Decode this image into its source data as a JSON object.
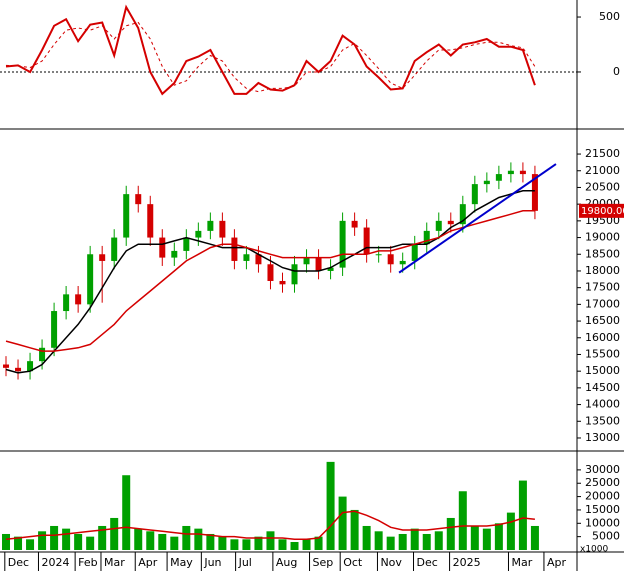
{
  "chart_data": [
    {
      "type": "line",
      "ylim": [
        -510,
        655
      ],
      "yticks": [
        0,
        500
      ],
      "zero_line": true,
      "series": [
        {
          "color": "#d40000",
          "width": 2,
          "values": [
            50,
            60,
            0,
            200,
            420,
            480,
            280,
            430,
            450,
            150,
            590,
            400,
            0,
            -200,
            -100,
            100,
            140,
            200,
            0,
            -200,
            -200,
            -100,
            -160,
            -170,
            -120,
            100,
            0,
            100,
            330,
            250,
            50,
            -50,
            -160,
            -150,
            100,
            180,
            250,
            150,
            250,
            270,
            300,
            230,
            230,
            200,
            -120
          ]
        },
        {
          "color": "#d40000",
          "width": 1,
          "dashed": true,
          "values": [
            60,
            55,
            40,
            100,
            250,
            380,
            400,
            380,
            420,
            300,
            420,
            450,
            300,
            50,
            -120,
            -80,
            50,
            150,
            100,
            -50,
            -150,
            -180,
            -150,
            -150,
            -130,
            0,
            0,
            50,
            200,
            260,
            150,
            30,
            -100,
            -150,
            -30,
            100,
            200,
            200,
            220,
            250,
            270,
            270,
            240,
            220,
            50
          ]
        }
      ]
    },
    {
      "type": "candlestick",
      "ylim": [
        12640,
        22220
      ],
      "yticks": [
        13000,
        13500,
        14000,
        14500,
        15000,
        15500,
        16000,
        16500,
        17000,
        17500,
        18000,
        18500,
        19000,
        19500,
        20000,
        20500,
        21000,
        21500
      ],
      "up_color": "#00a000",
      "down_color": "#d40000",
      "open": [
        15200,
        15100,
        15000,
        15300,
        15700,
        16800,
        17300,
        17000,
        18500,
        18300,
        19000,
        20300,
        20000,
        19000,
        18400,
        18600,
        19000,
        19200,
        19500,
        19000,
        18300,
        18500,
        18200,
        17700,
        17600,
        18200,
        18400,
        18000,
        18100,
        19500,
        19300,
        18500,
        18500,
        18200,
        18300,
        18800,
        19200,
        19500,
        19400,
        20000,
        20600,
        20700,
        20900,
        21000,
        20900
      ],
      "high": [
        15450,
        15350,
        15550,
        15950,
        17050,
        17550,
        17550,
        18750,
        18750,
        19250,
        20550,
        20550,
        20250,
        19250,
        18850,
        19250,
        19450,
        19750,
        19750,
        19250,
        18750,
        18750,
        18450,
        17950,
        18450,
        18650,
        18650,
        18350,
        19750,
        19750,
        19550,
        18750,
        18750,
        18550,
        19050,
        19450,
        19750,
        19750,
        20250,
        20850,
        20950,
        21150,
        21250,
        21250,
        21150
      ],
      "low": [
        14850,
        14750,
        14750,
        15050,
        15450,
        16550,
        16750,
        16750,
        17050,
        18050,
        18750,
        19750,
        18750,
        18150,
        18150,
        18350,
        18750,
        18950,
        18750,
        18050,
        18050,
        17950,
        17450,
        17350,
        17350,
        17950,
        17750,
        17750,
        17850,
        19050,
        18250,
        18250,
        17950,
        17950,
        18050,
        18550,
        18950,
        19150,
        19150,
        19750,
        20350,
        20450,
        20650,
        20650,
        19550
      ],
      "close": [
        15100,
        15000,
        15300,
        15700,
        16800,
        17300,
        17000,
        18500,
        18300,
        19000,
        20300,
        20000,
        19000,
        18400,
        18600,
        19000,
        19200,
        19500,
        19000,
        18300,
        18500,
        18200,
        17700,
        17600,
        18200,
        18400,
        18000,
        18100,
        19500,
        19300,
        18500,
        18500,
        18200,
        18300,
        18800,
        19200,
        19500,
        19400,
        20000,
        20600,
        20700,
        20900,
        21000,
        20900,
        19800
      ],
      "series": [
        {
          "color": "#000000",
          "values": [
            15050,
            14950,
            15000,
            15200,
            15600,
            16000,
            16400,
            16900,
            17500,
            18100,
            18600,
            18800,
            18800,
            18800,
            18900,
            19000,
            18900,
            18800,
            18700,
            18700,
            18700,
            18500,
            18300,
            18100,
            18000,
            18000,
            18000,
            18100,
            18300,
            18500,
            18700,
            18700,
            18700,
            18800,
            18800,
            18800,
            19000,
            19300,
            19500,
            19800,
            20000,
            20200,
            20300,
            20400,
            20400
          ]
        },
        {
          "color": "#d40000",
          "values": [
            15900,
            15800,
            15700,
            15600,
            15600,
            15650,
            15700,
            15800,
            16100,
            16400,
            16800,
            17100,
            17400,
            17700,
            18000,
            18300,
            18500,
            18700,
            18800,
            18800,
            18700,
            18600,
            18500,
            18400,
            18400,
            18400,
            18400,
            18400,
            18500,
            18500,
            18500,
            18600,
            18600,
            18700,
            18800,
            18900,
            19000,
            19200,
            19300,
            19400,
            19500,
            19600,
            19700,
            19800,
            19800
          ]
        }
      ],
      "trendline": {
        "color": "#0000cc",
        "x": [
          33.2,
          46.25
        ],
        "y": [
          17950,
          21200
        ]
      },
      "last_price": {
        "value": 19800,
        "label": "19800.00",
        "color": "#d40000"
      }
    },
    {
      "type": "bar",
      "ylim": [
        0,
        36700
      ],
      "yticks": [
        5000,
        10000,
        15000,
        20000,
        25000,
        30000
      ],
      "unit_label": "x1000",
      "color": "#00a000",
      "values": [
        6000,
        5000,
        4000,
        7000,
        9000,
        8000,
        6000,
        5000,
        9000,
        12000,
        28000,
        8000,
        7000,
        6000,
        5000,
        9000,
        8000,
        6000,
        5000,
        4000,
        4000,
        5000,
        7000,
        4000,
        3000,
        4000,
        5000,
        33000,
        20000,
        15000,
        9000,
        7000,
        5000,
        6000,
        8000,
        6000,
        7000,
        12000,
        22000,
        9000,
        8000,
        10000,
        14000,
        26000,
        9000
      ],
      "series": [
        {
          "color": "#d40000",
          "values": [
            4000,
            4500,
            5000,
            5500,
            5500,
            6000,
            6500,
            7000,
            7500,
            8000,
            8500,
            8000,
            7500,
            7000,
            6500,
            6000,
            6000,
            5500,
            5000,
            5000,
            4500,
            4500,
            4500,
            4500,
            4000,
            4000,
            4500,
            9000,
            14000,
            14500,
            13000,
            11000,
            8500,
            7500,
            7500,
            7500,
            8000,
            8500,
            9000,
            9000,
            9000,
            9500,
            10500,
            12000,
            11500
          ]
        }
      ],
      "xlim": [
        0,
        48
      ],
      "xticks": [
        {
          "value": 0.4,
          "label": "Dec"
        },
        {
          "value": 3.2,
          "label": "2024"
        },
        {
          "value": 6.25,
          "label": "Feb"
        },
        {
          "value": 8.4,
          "label": "Mar"
        },
        {
          "value": 11.25,
          "label": "Apr"
        },
        {
          "value": 13.9,
          "label": "May"
        },
        {
          "value": 16.75,
          "label": "Jun"
        },
        {
          "value": 19.6,
          "label": "Jul"
        },
        {
          "value": 22.7,
          "label": "Aug"
        },
        {
          "value": 25.75,
          "label": "Sep"
        },
        {
          "value": 28.3,
          "label": "Oct"
        },
        {
          "value": 31.4,
          "label": "Nov"
        },
        {
          "value": 34.4,
          "label": "Dec"
        },
        {
          "value": 37.4,
          "label": "2025"
        },
        {
          "value": 42.3,
          "label": "Mar"
        },
        {
          "value": 45.25,
          "label": "Apr"
        }
      ]
    }
  ]
}
